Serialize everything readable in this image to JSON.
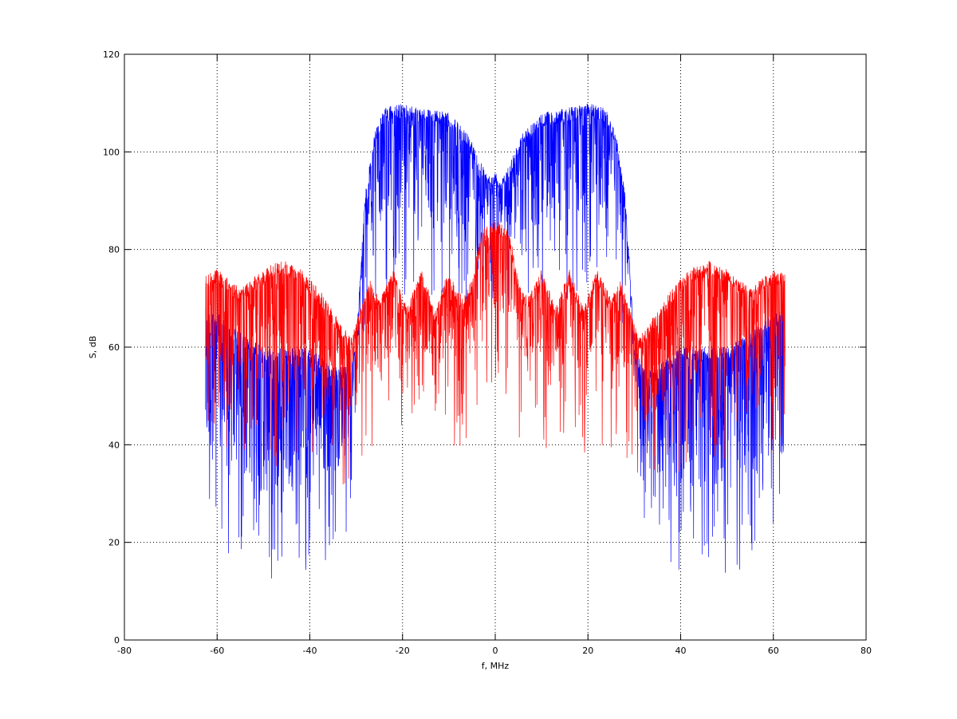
{
  "chart_data": {
    "type": "line",
    "title": "",
    "xlabel": "f, MHz",
    "ylabel": "S, dB",
    "xlim": [
      -80,
      80
    ],
    "ylim": [
      0,
      120
    ],
    "xticks": [
      -80,
      -60,
      -40,
      -20,
      0,
      20,
      40,
      60,
      80
    ],
    "yticks": [
      0,
      20,
      40,
      60,
      80,
      100,
      120
    ],
    "grid": true,
    "series": [
      {
        "color": "#0000ff",
        "x": [
          -62.5,
          -60,
          -55,
          -50,
          -45,
          -40,
          -35,
          -32,
          -30,
          -29,
          -28,
          -26,
          -24,
          -20,
          -15,
          -10,
          -6,
          -4,
          -2,
          -1,
          0,
          1,
          2,
          4,
          6,
          10,
          15,
          20,
          24,
          26,
          28,
          29,
          30,
          32,
          35,
          40,
          45,
          50,
          55,
          60,
          62.5
        ],
        "upper": [
          68,
          67,
          63,
          60,
          60,
          60,
          56,
          56,
          60,
          78,
          92,
          104,
          109,
          110,
          109,
          108,
          104,
          100,
          96,
          95,
          96,
          95,
          96,
          100,
          104,
          108,
          109,
          110,
          109,
          104,
          92,
          78,
          60,
          56,
          56,
          60,
          60,
          60,
          63,
          67,
          68
        ],
        "lower": [
          38,
          36,
          33,
          30,
          30,
          32,
          34,
          38,
          55,
          70,
          80,
          86,
          88,
          88,
          86,
          85,
          84,
          85,
          86,
          87,
          88,
          87,
          86,
          85,
          84,
          85,
          86,
          88,
          88,
          86,
          80,
          70,
          55,
          38,
          34,
          32,
          30,
          30,
          33,
          36,
          38
        ]
      },
      {
        "color": "#ff0000",
        "x": [
          -62.5,
          -60,
          -55,
          -50,
          -46,
          -42,
          -38,
          -34,
          -31,
          -29,
          -27,
          -25,
          -22,
          -19,
          -16,
          -13,
          -10,
          -7,
          -5,
          -3,
          0,
          3,
          5,
          7,
          10,
          13,
          16,
          19,
          22,
          25,
          27,
          29,
          31,
          34,
          38,
          42,
          46,
          50,
          55,
          60,
          62.5
        ],
        "upper": [
          75,
          76,
          72,
          76,
          78,
          76,
          72,
          66,
          62,
          68,
          74,
          70,
          76,
          68,
          76,
          68,
          76,
          70,
          74,
          84,
          86,
          84,
          74,
          70,
          76,
          68,
          76,
          68,
          76,
          70,
          74,
          68,
          62,
          66,
          72,
          76,
          78,
          76,
          72,
          76,
          75
        ],
        "lower": [
          56,
          55,
          52,
          52,
          54,
          52,
          50,
          46,
          44,
          52,
          58,
          54,
          60,
          52,
          60,
          52,
          60,
          54,
          58,
          66,
          68,
          66,
          58,
          54,
          60,
          52,
          60,
          52,
          60,
          54,
          58,
          52,
          44,
          46,
          50,
          52,
          54,
          52,
          52,
          55,
          56
        ]
      }
    ]
  }
}
